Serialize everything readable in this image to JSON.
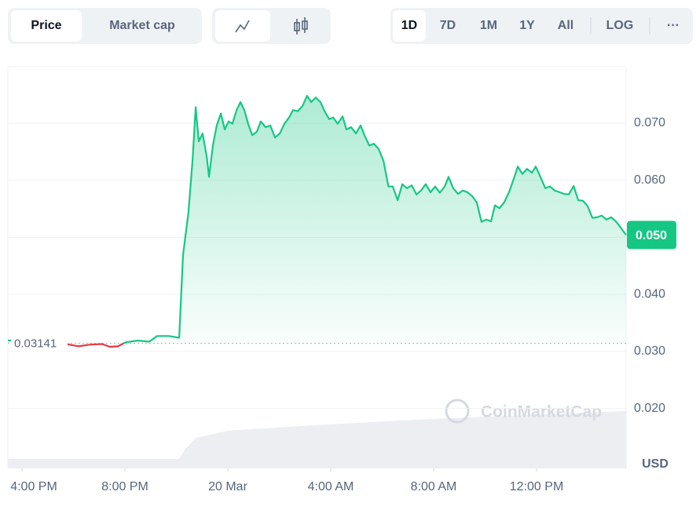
{
  "toolbar": {
    "metric_tabs": [
      "Price",
      "Market cap"
    ],
    "ranges": [
      "1D",
      "7D",
      "1M",
      "1Y",
      "All"
    ],
    "scale": "LOG",
    "more": "···"
  },
  "chart_data": {
    "type": "line",
    "color": "#16c784",
    "down_color": "#ea3943",
    "x": [
      -0.55,
      0.06,
      1.83,
      2.2,
      2.66,
      3.11,
      3.42,
      3.73,
      4.03,
      4.49,
      4.95,
      5.25,
      5.71,
      6.11,
      6.26,
      6.47,
      6.63,
      6.75,
      6.87,
      7.02,
      7.18,
      7.27,
      7.42,
      7.57,
      7.73,
      7.88,
      8.03,
      8.18,
      8.34,
      8.49,
      8.64,
      8.79,
      8.95,
      9.13,
      9.28,
      9.47,
      9.65,
      9.83,
      10.02,
      10.2,
      10.38,
      10.53,
      10.72,
      10.9,
      11.08,
      11.24,
      11.42,
      11.6,
      11.76,
      11.94,
      12.09,
      12.27,
      12.46,
      12.61,
      12.79,
      12.98,
      13.16,
      13.31,
      13.5,
      13.68,
      13.86,
      14.05,
      14.24,
      14.41,
      14.6,
      14.78,
      14.96,
      15.15,
      15.33,
      15.51,
      15.69,
      15.88,
      16.06,
      16.24,
      16.43,
      16.58,
      16.76,
      16.95,
      17.13,
      17.31,
      17.5,
      17.68,
      17.86,
      18.05,
      18.23,
      18.38,
      18.56,
      18.75,
      18.93,
      19.11,
      19.27,
      19.45,
      19.63,
      19.82,
      19.97,
      20.15,
      20.34,
      20.52,
      20.7,
      20.89,
      21.07,
      21.25,
      21.44,
      21.62,
      21.8,
      21.98,
      22.17,
      22.35,
      22.53,
      22.72,
      22.9,
      23.08,
      23.27,
      23.48
    ],
    "values": [
      0.0319,
      0.032,
      0.0312,
      0.0309,
      0.0312,
      0.0313,
      0.0308,
      0.0309,
      0.0316,
      0.0319,
      0.0317,
      0.0327,
      0.0327,
      0.0324,
      0.0469,
      0.0544,
      0.0637,
      0.0728,
      0.0668,
      0.0682,
      0.0641,
      0.0606,
      0.0661,
      0.0696,
      0.0717,
      0.0689,
      0.0703,
      0.0699,
      0.0723,
      0.0737,
      0.0723,
      0.0699,
      0.0679,
      0.0685,
      0.0703,
      0.0693,
      0.0696,
      0.0675,
      0.0682,
      0.0699,
      0.071,
      0.0723,
      0.0721,
      0.073,
      0.0748,
      0.0737,
      0.0745,
      0.0737,
      0.0721,
      0.0707,
      0.071,
      0.0699,
      0.0712,
      0.0689,
      0.0693,
      0.0682,
      0.0696,
      0.0679,
      0.0661,
      0.0664,
      0.0655,
      0.0634,
      0.0589,
      0.0589,
      0.0565,
      0.0593,
      0.0586,
      0.0591,
      0.0575,
      0.0582,
      0.0593,
      0.0579,
      0.0589,
      0.0578,
      0.0589,
      0.0606,
      0.0586,
      0.0576,
      0.0582,
      0.0579,
      0.0572,
      0.0561,
      0.0527,
      0.0531,
      0.0528,
      0.0556,
      0.0551,
      0.0562,
      0.0579,
      0.0602,
      0.0624,
      0.0611,
      0.062,
      0.0613,
      0.0624,
      0.0606,
      0.0586,
      0.0589,
      0.0582,
      0.0579,
      0.0576,
      0.0575,
      0.059,
      0.0565,
      0.0564,
      0.0555,
      0.0534,
      0.0535,
      0.0538,
      0.0531,
      0.0535,
      0.0528,
      0.0517,
      0.0504
    ],
    "xlim": [
      -0.55,
      23.48
    ],
    "xticks": [
      {
        "value": 0,
        "label": "4:00 PM"
      },
      {
        "value": 4,
        "label": "8:00 PM"
      },
      {
        "value": 8,
        "label": "20 Mar"
      },
      {
        "value": 12,
        "label": "4:00 AM"
      },
      {
        "value": 16,
        "label": "8:00 AM"
      },
      {
        "value": 20,
        "label": "12:00 PM"
      }
    ],
    "ylim": [
      0.0095,
      0.0799
    ],
    "yticks": [
      {
        "value": 0.02,
        "label": "0.020"
      },
      {
        "value": 0.03,
        "label": "0.030"
      },
      {
        "value": 0.04,
        "label": "0.040"
      },
      {
        "value": 0.05,
        "label": "0.050"
      },
      {
        "value": 0.06,
        "label": "0.060"
      },
      {
        "value": 0.07,
        "label": "0.070"
      }
    ],
    "grid": true,
    "baseline": 0.03141,
    "current_price": {
      "value": 0.0504,
      "label": "0.050"
    },
    "currency": "USD",
    "watermark": "CoinMarketCap"
  }
}
